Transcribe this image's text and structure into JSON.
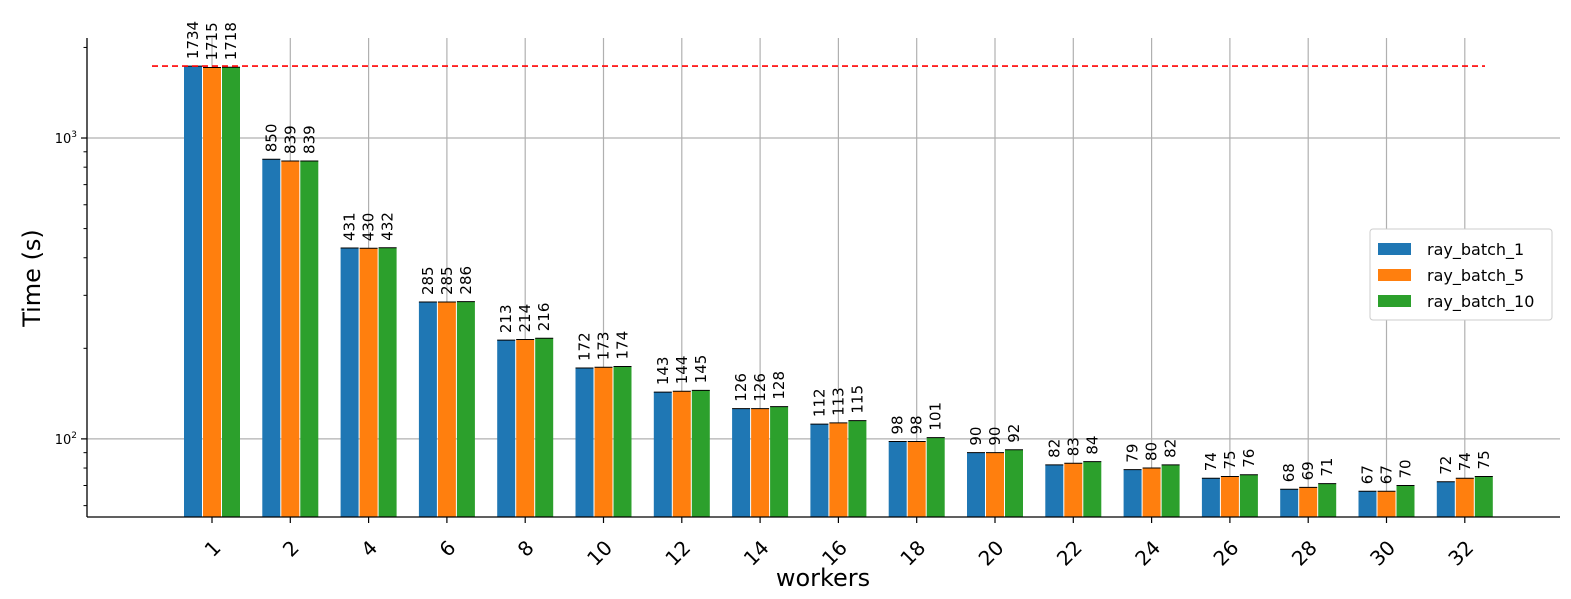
{
  "chart_data": {
    "type": "bar",
    "xlabel": "workers",
    "ylabel": "Time (s)",
    "yscale": "log",
    "ylim": [
      55,
      2150
    ],
    "ytick_values": [
      100,
      1000
    ],
    "ytick_labels": {
      "base": "10",
      "exps": [
        "2",
        "3"
      ]
    },
    "grid": true,
    "legend_position": "right",
    "categories": [
      "1",
      "2",
      "4",
      "6",
      "8",
      "10",
      "12",
      "14",
      "16",
      "18",
      "20",
      "22",
      "24",
      "26",
      "28",
      "30",
      "32"
    ],
    "series": [
      {
        "name": "ray_batch_1",
        "color": "#1f77b4",
        "values": [
          1734,
          850,
          431,
          285,
          213,
          172,
          143,
          126,
          112,
          98,
          90,
          82,
          79,
          74,
          68,
          67,
          72
        ]
      },
      {
        "name": "ray_batch_5",
        "color": "#ff7f0e",
        "values": [
          1715,
          839,
          430,
          285,
          214,
          173,
          144,
          126,
          113,
          98,
          90,
          83,
          80,
          75,
          69,
          67,
          74
        ]
      },
      {
        "name": "ray_batch_10",
        "color": "#2ca02c",
        "values": [
          1718,
          839,
          432,
          286,
          216,
          174,
          145,
          128,
          115,
          101,
          92,
          84,
          82,
          76,
          71,
          70,
          75
        ]
      }
    ],
    "reference_line": {
      "value": 1734,
      "color": "#ff0000",
      "style": "dashed"
    }
  }
}
